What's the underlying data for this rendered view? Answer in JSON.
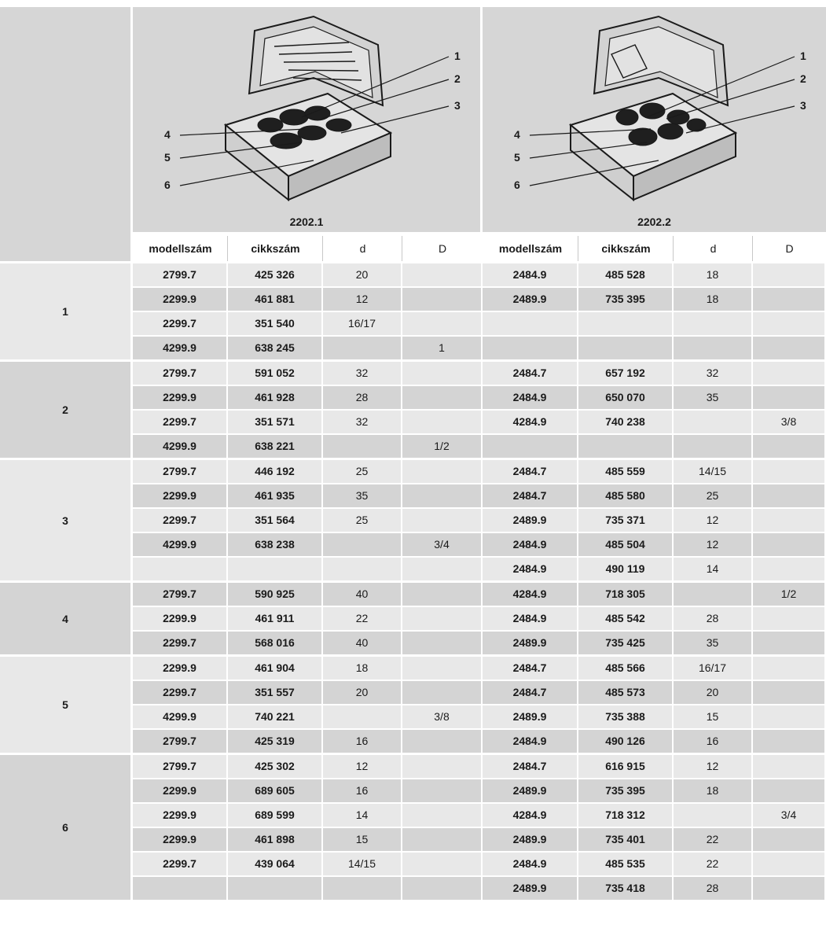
{
  "cases": [
    {
      "label": "2202.1",
      "callouts": [
        "1",
        "2",
        "3",
        "4",
        "5",
        "6"
      ]
    },
    {
      "label": "2202.2",
      "callouts": [
        "1",
        "2",
        "3",
        "4",
        "5",
        "6"
      ]
    }
  ],
  "columns": [
    "modellszám",
    "cikkszám",
    "d",
    "D",
    "modellszám",
    "cikkszám",
    "d",
    "D"
  ],
  "groups": [
    {
      "id": "1",
      "rows": [
        [
          "2799.7",
          "425 326",
          "20",
          "",
          "2484.9",
          "485 528",
          "18",
          ""
        ],
        [
          "2299.9",
          "461 881",
          "12",
          "",
          "2489.9",
          "735 395",
          "18",
          ""
        ],
        [
          "2299.7",
          "351 540",
          "16/17",
          "",
          "",
          "",
          "",
          ""
        ],
        [
          "4299.9",
          "638 245",
          "",
          "1",
          "",
          "",
          "",
          ""
        ]
      ]
    },
    {
      "id": "2",
      "rows": [
        [
          "2799.7",
          "591 052",
          "32",
          "",
          "2484.7",
          "657 192",
          "32",
          ""
        ],
        [
          "2299.9",
          "461 928",
          "28",
          "",
          "2484.9",
          "650 070",
          "35",
          ""
        ],
        [
          "2299.7",
          "351 571",
          "32",
          "",
          "4284.9",
          "740 238",
          "",
          "3/8"
        ],
        [
          "4299.9",
          "638 221",
          "",
          "1/2",
          "",
          "",
          "",
          ""
        ]
      ]
    },
    {
      "id": "3",
      "rows": [
        [
          "2799.7",
          "446 192",
          "25",
          "",
          "2484.7",
          "485 559",
          "14/15",
          ""
        ],
        [
          "2299.9",
          "461 935",
          "35",
          "",
          "2484.7",
          "485 580",
          "25",
          ""
        ],
        [
          "2299.7",
          "351 564",
          "25",
          "",
          "2489.9",
          "735 371",
          "12",
          ""
        ],
        [
          "4299.9",
          "638 238",
          "",
          "3/4",
          "2484.9",
          "485 504",
          "12",
          ""
        ],
        [
          "",
          "",
          "",
          "",
          "2484.9",
          "490 119",
          "14",
          ""
        ]
      ]
    },
    {
      "id": "4",
      "rows": [
        [
          "2799.7",
          "590 925",
          "40",
          "",
          "4284.9",
          "718 305",
          "",
          "1/2"
        ],
        [
          "2299.9",
          "461 911",
          "22",
          "",
          "2484.9",
          "485 542",
          "28",
          ""
        ],
        [
          "2299.7",
          "568 016",
          "40",
          "",
          "2489.9",
          "735 425",
          "35",
          ""
        ]
      ]
    },
    {
      "id": "5",
      "rows": [
        [
          "2299.9",
          "461 904",
          "18",
          "",
          "2484.7",
          "485 566",
          "16/17",
          ""
        ],
        [
          "2299.7",
          "351 557",
          "20",
          "",
          "2484.7",
          "485 573",
          "20",
          ""
        ],
        [
          "4299.9",
          "740 221",
          "",
          "3/8",
          "2489.9",
          "735 388",
          "15",
          ""
        ],
        [
          "2799.7",
          "425 319",
          "16",
          "",
          "2484.9",
          "490 126",
          "16",
          ""
        ]
      ]
    },
    {
      "id": "6",
      "rows": [
        [
          "2799.7",
          "425 302",
          "12",
          "",
          "2484.7",
          "616 915",
          "12",
          ""
        ],
        [
          "2299.9",
          "689 605",
          "16",
          "",
          "2489.9",
          "735 395",
          "18",
          ""
        ],
        [
          "2299.9",
          "689 599",
          "14",
          "",
          "4284.9",
          "718 312",
          "",
          "3/4"
        ],
        [
          "2299.9",
          "461 898",
          "15",
          "",
          "2489.9",
          "735 401",
          "22",
          ""
        ],
        [
          "2299.7",
          "439 064",
          "14/15",
          "",
          "2484.9",
          "485 535",
          "22",
          ""
        ],
        [
          "",
          "",
          "",
          "",
          "2489.9",
          "735 418",
          "28",
          ""
        ]
      ]
    }
  ]
}
